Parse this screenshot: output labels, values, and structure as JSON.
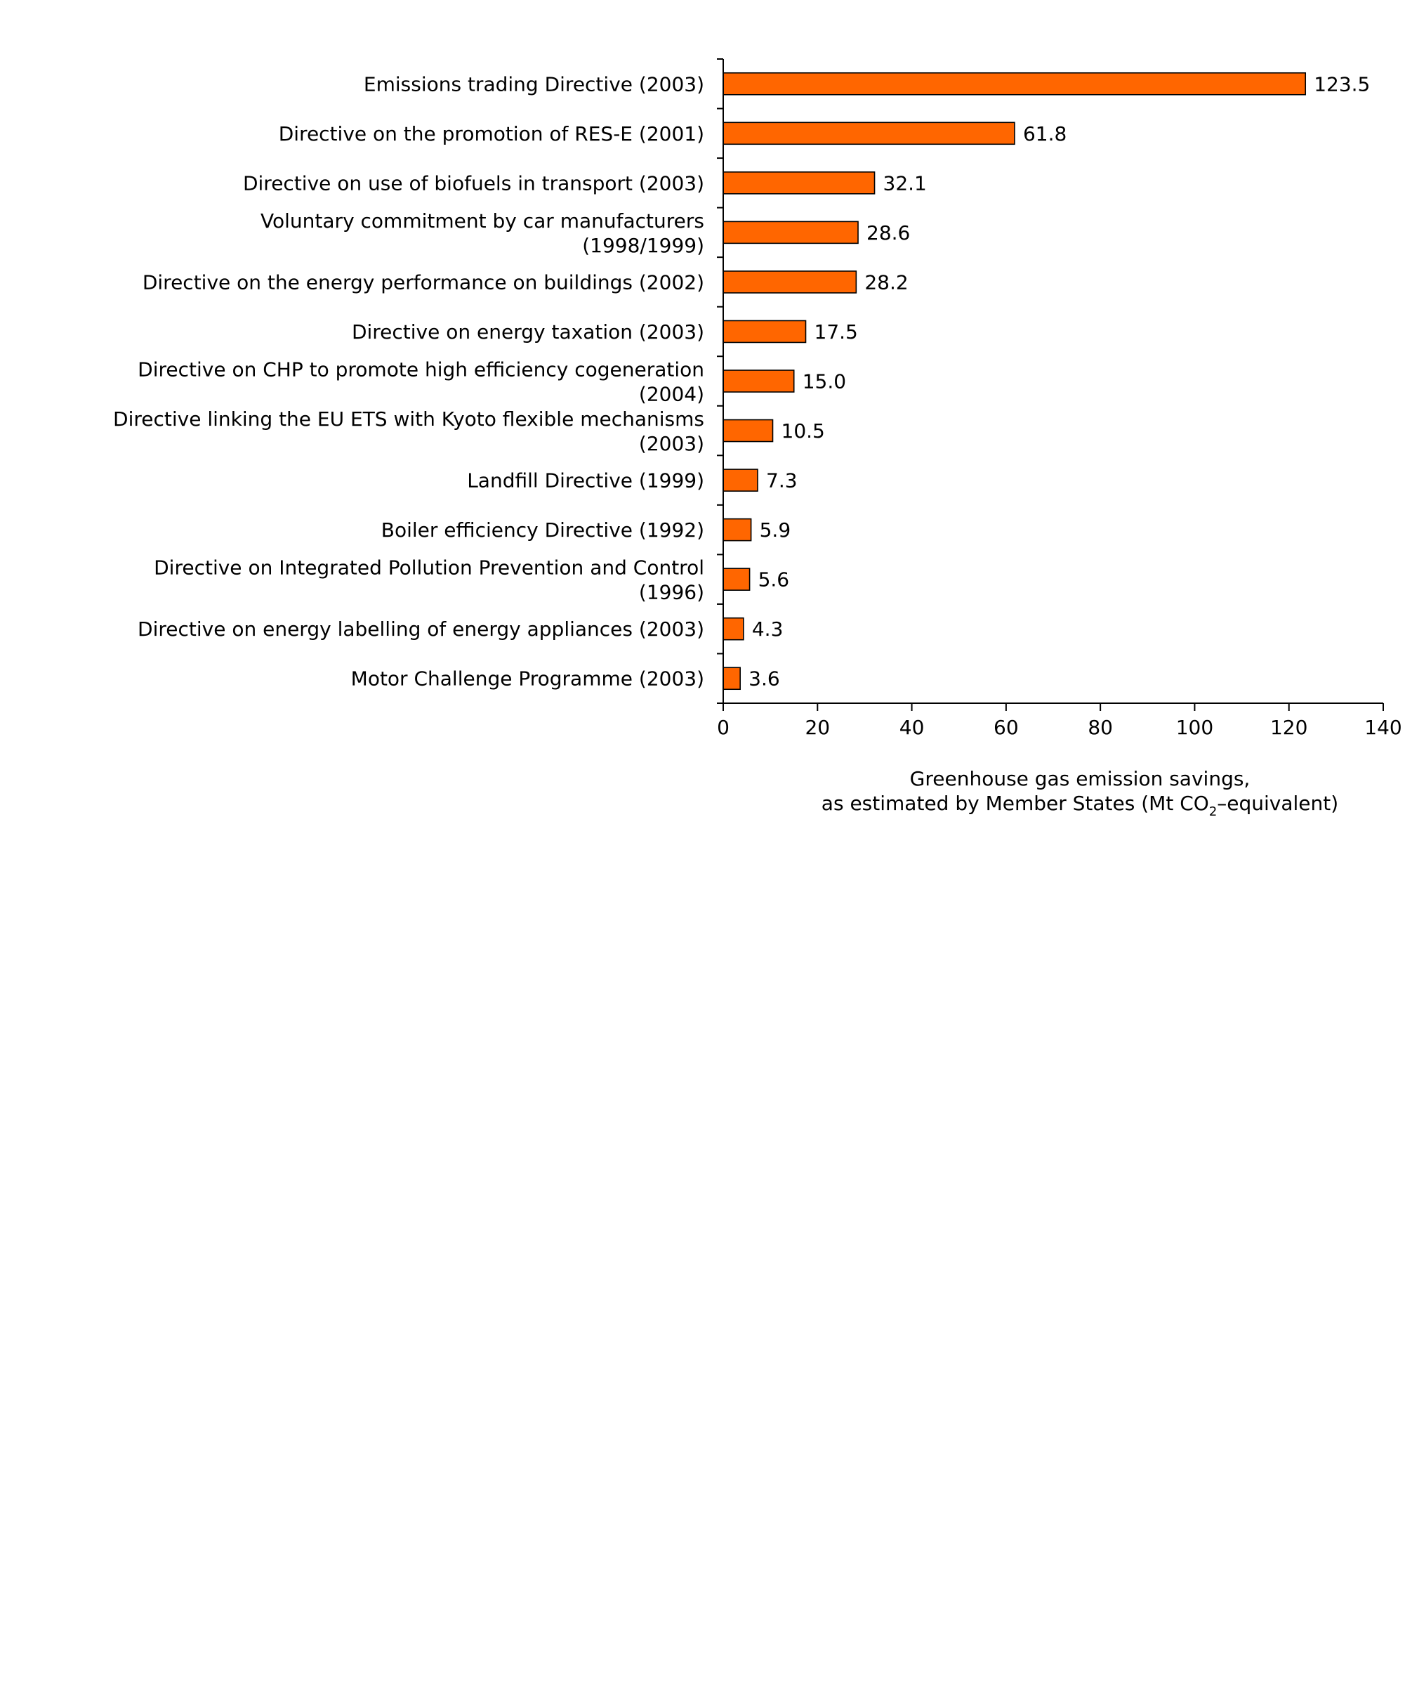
{
  "chart_data": {
    "type": "bar",
    "orientation": "horizontal",
    "title": "",
    "categories": [
      "Emissions trading Directive (2003)",
      "Directive on the promotion of RES-E (2001)",
      "Directive on use of biofuels in transport (2003)",
      "Voluntary commitment by car manufacturers|(1998/1999)",
      "Directive on the energy performance on buildings (2002)",
      "Directive on energy taxation (2003)",
      "Directive on CHP to promote high efficiency cogeneration|(2004)",
      "Directive linking the EU ETS with Kyoto flexible mechanisms|(2003)",
      "Landfill Directive (1999)",
      "Boiler efficiency Directive (1992)",
      "Directive on Integrated Pollution Prevention and Control|(1996)",
      "Directive on energy labelling of energy appliances (2003)",
      "Motor Challenge Programme (2003)"
    ],
    "values": [
      123.5,
      61.8,
      32.1,
      28.6,
      28.2,
      17.5,
      15.0,
      10.5,
      7.3,
      5.9,
      5.6,
      4.3,
      3.6
    ],
    "value_labels": [
      "123.5",
      "61.8",
      "32.1",
      "28.6",
      "28.2",
      "17.5",
      "15.0",
      "10.5",
      "7.3",
      "5.9",
      "5.6",
      "4.3",
      "3.6"
    ],
    "xlabel_line1": "Greenhouse gas emission savings,",
    "xlabel_line2_pre": "as estimated by Member States (Mt CO",
    "xlabel_sub": "2",
    "xlabel_line2_post": "–equivalent)",
    "xlim": [
      0,
      140
    ],
    "xticks": [
      0,
      20,
      40,
      60,
      80,
      100,
      120,
      140
    ],
    "bar_color": "#ff6600",
    "bar_edge_color": "#000000",
    "grid": false,
    "legend": "none"
  }
}
